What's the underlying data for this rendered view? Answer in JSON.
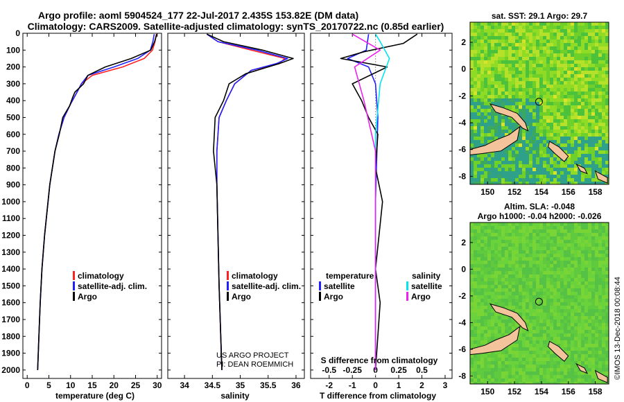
{
  "header": {
    "title_line1": "Argo profile: aoml 5904524_177 22-Jul-2017 2.435S 153.82E (DM data)",
    "title_line2": "Climatology: CARS2009. Satellite-adjusted climatology: synTS_20170722.nc (0.85d earlier)"
  },
  "colors": {
    "climatology": "#ff2020",
    "satellite": "#2020ff",
    "argo": "#000000",
    "sat_salinity": "#00e5ee",
    "argo_salinity": "#ee22ee",
    "land": "#f3c49c"
  },
  "chart_data": [
    {
      "type": "line",
      "xlabel": "temperature (deg C)",
      "ylim": [
        2050,
        0
      ],
      "xlim": [
        -1,
        31
      ],
      "x_ticks": [
        "0",
        "5",
        "10",
        "15",
        "20",
        "25",
        "30"
      ],
      "y_ticks": [
        "0",
        "100",
        "200",
        "300",
        "400",
        "500",
        "600",
        "700",
        "800",
        "900",
        "1000",
        "1100",
        "1200",
        "1300",
        "1400",
        "1500",
        "1600",
        "1700",
        "1800",
        "1900",
        "2000"
      ],
      "legend": [
        "climatology",
        "satellite-adj. clim.",
        "Argo"
      ],
      "series": [
        {
          "name": "climatology",
          "x": [
            29.8,
            29.5,
            28.9,
            27.0,
            22.0,
            15.0,
            12.5,
            11.5,
            10.0,
            8.5,
            7.3,
            6.4,
            5.2,
            4.0,
            3.4,
            3.0,
            2.7,
            2.4
          ],
          "y": [
            5,
            50,
            100,
            150,
            200,
            250,
            300,
            350,
            420,
            500,
            600,
            700,
            900,
            1200,
            1400,
            1600,
            1800,
            2000
          ]
        },
        {
          "name": "satellite-adj. clim.",
          "x": [
            29.3,
            29.0,
            28.4,
            25.5,
            20.0,
            14.0,
            12.5,
            11.5,
            10.0,
            8.5,
            7.3,
            6.4,
            5.2,
            4.0,
            3.4,
            3.0,
            2.7,
            2.4
          ],
          "y": [
            5,
            50,
            100,
            150,
            200,
            250,
            300,
            350,
            420,
            500,
            600,
            700,
            900,
            1200,
            1400,
            1600,
            1800,
            2000
          ]
        },
        {
          "name": "Argo",
          "x": [
            29.9,
            29.4,
            28.5,
            24.0,
            18.0,
            14.0,
            13.0,
            11.0,
            10.5,
            9.8,
            8.2,
            7.4,
            6.4,
            5.2,
            4.0,
            3.4,
            3.0,
            2.7,
            2.4
          ],
          "y": [
            5,
            50,
            100,
            150,
            200,
            250,
            300,
            350,
            380,
            430,
            500,
            600,
            700,
            900,
            1200,
            1400,
            1600,
            1800,
            2000
          ]
        }
      ]
    },
    {
      "type": "line",
      "xlabel": "salinity",
      "ylim": [
        2050,
        0
      ],
      "xlim": [
        33.7,
        36.15
      ],
      "x_ticks": [
        "34",
        "34.5",
        "35",
        "35.5",
        "36"
      ],
      "legend": [
        "climatology",
        "satellite-adj. clim.",
        "Argo"
      ],
      "series": [
        {
          "name": "climatology",
          "x": [
            34.4,
            34.6,
            35.2,
            35.8,
            35.7,
            35.2,
            34.9,
            34.75,
            34.62,
            34.58,
            34.58,
            34.6,
            34.62,
            34.65,
            34.67
          ],
          "y": [
            5,
            50,
            100,
            150,
            180,
            220,
            300,
            400,
            500,
            700,
            900,
            1200,
            1500,
            1800,
            2000
          ]
        },
        {
          "name": "satellite-adj. clim.",
          "x": [
            34.4,
            34.6,
            35.3,
            35.85,
            35.65,
            35.2,
            34.9,
            34.75,
            34.62,
            34.58,
            34.58,
            34.6,
            34.62,
            34.65,
            34.67
          ],
          "y": [
            5,
            50,
            100,
            150,
            180,
            220,
            300,
            400,
            500,
            700,
            900,
            1200,
            1500,
            1800,
            2000
          ]
        },
        {
          "name": "Argo",
          "x": [
            34.4,
            34.7,
            35.4,
            35.95,
            35.7,
            35.1,
            34.8,
            34.7,
            34.55,
            34.52,
            34.58,
            34.6,
            34.62,
            34.65,
            34.67
          ],
          "y": [
            5,
            50,
            100,
            150,
            180,
            240,
            300,
            400,
            500,
            700,
            900,
            1200,
            1500,
            1800,
            2000
          ]
        }
      ]
    },
    {
      "type": "line",
      "xlabel": "T difference from climatology",
      "xlabel2": "S difference from climatology",
      "ylim": [
        2050,
        0
      ],
      "xlim": [
        -2.8,
        3.3
      ],
      "x_ticks": [
        "-2",
        "-1",
        "0",
        "1",
        "2",
        "3"
      ],
      "x2_ticks": [
        "-0.5",
        "-0.25",
        "0",
        "0.25",
        "0.5"
      ],
      "legend_left_title": "temperature",
      "legend_right_title": "salinity",
      "legend": [
        "satellite",
        "Argo",
        "satellite",
        "Argo"
      ],
      "series": [
        {
          "name": "satellite",
          "x": [
            -0.3,
            -0.4,
            -1.2,
            -0.3,
            0.0,
            0.1,
            0.0,
            0.0
          ],
          "y": [
            5,
            100,
            150,
            200,
            300,
            500,
            1000,
            2000
          ]
        },
        {
          "name": "Argo",
          "x": [
            1.8,
            1.2,
            -0.5,
            -1.5,
            0.5,
            -1.0,
            -0.6,
            -0.3,
            0.1,
            0.0,
            0.3,
            0.0,
            0.2,
            0.0
          ],
          "y": [
            5,
            60,
            110,
            150,
            200,
            300,
            400,
            500,
            600,
            800,
            1000,
            1400,
            1600,
            2000
          ]
        },
        {
          "name": "satellite",
          "x": [
            0.0,
            0.2,
            0.6,
            0.2,
            0.0,
            0.0
          ],
          "y": [
            5,
            50,
            150,
            300,
            600,
            2000
          ]
        },
        {
          "name": "Argo",
          "x": [
            -1.0,
            0.2,
            -0.9,
            -0.5,
            0.0,
            0.0
          ],
          "y": [
            5,
            100,
            200,
            400,
            700,
            2000
          ]
        }
      ]
    }
  ],
  "maps": {
    "sst_title": "sat. SST: 29.1 Argo: 29.7",
    "sla_title_line1": "Altim. SLA: -0.048",
    "sla_title_line2": "Argo h1000: -0.04 h2000: -0.026",
    "x_ticks": [
      "150",
      "152",
      "154",
      "156",
      "158"
    ],
    "y_ticks": [
      "2",
      "0",
      "-2",
      "-4",
      "-6",
      "-8"
    ],
    "lon_range": [
      148.7,
      159.0
    ],
    "lat_range": [
      -8.6,
      3.5
    ],
    "argo_position": {
      "lon": 153.82,
      "lat": -2.435
    }
  },
  "notes": {
    "project_line1": "US ARGO PROJECT",
    "project_line2": "PI: DEAN ROEMMICH",
    "credit": "©IMOS 13-Dec-2018 00:08:44"
  }
}
